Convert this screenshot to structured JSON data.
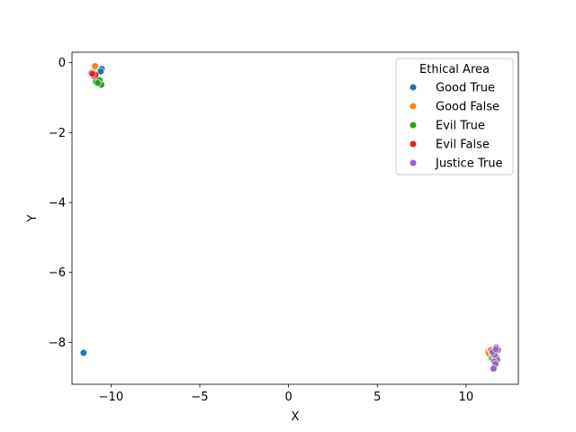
{
  "chart_data": {
    "type": "scatter",
    "title": "",
    "xlabel": "X",
    "ylabel": "Y",
    "xlim": [
      -12.2,
      12.95
    ],
    "ylim": [
      -9.2,
      0.3
    ],
    "xticks": [
      -10,
      -5,
      0,
      5,
      10
    ],
    "xtick_labels": [
      "−10",
      "−5",
      "0",
      "5",
      "10"
    ],
    "yticks": [
      0,
      -2,
      -4,
      -6,
      -8
    ],
    "ytick_labels": [
      "0",
      "−2",
      "−4",
      "−6",
      "−8"
    ],
    "grid": false,
    "legend": {
      "title": "Ethical Area",
      "position": "top-right"
    },
    "series": [
      {
        "name": "Good True",
        "color": "#1f77b4",
        "points": [
          [
            -10.55,
            -0.2
          ],
          [
            -10.6,
            -0.22
          ],
          [
            -10.52,
            -0.18
          ],
          [
            -10.58,
            -0.25
          ],
          [
            -11.55,
            -8.3
          ]
        ]
      },
      {
        "name": "Good False",
        "color": "#ff7f0e",
        "points": [
          [
            -10.9,
            -0.1
          ],
          [
            -11.05,
            -0.27
          ],
          [
            11.25,
            -8.28
          ],
          [
            11.3,
            -8.32
          ],
          [
            11.4,
            -8.22
          ],
          [
            11.45,
            -8.3
          ]
        ]
      },
      {
        "name": "Evil True",
        "color": "#2ca02c",
        "points": [
          [
            -10.7,
            -0.52
          ],
          [
            -10.85,
            -0.55
          ],
          [
            -10.65,
            -0.5
          ],
          [
            -10.55,
            -0.63
          ],
          [
            -10.75,
            -0.58
          ],
          [
            11.45,
            -8.45
          ],
          [
            11.55,
            -8.5
          ],
          [
            11.5,
            -8.38
          ]
        ]
      },
      {
        "name": "Evil False",
        "color": "#d62728",
        "points": [
          [
            -11.1,
            -0.3
          ],
          [
            -10.95,
            -0.38
          ],
          [
            -10.88,
            -0.35
          ],
          [
            -11.05,
            -0.32
          ],
          [
            11.5,
            -8.3
          ],
          [
            11.55,
            -8.26
          ]
        ]
      },
      {
        "name": "Justice True",
        "color": "#9467bd",
        "points": [
          [
            11.7,
            -8.15
          ],
          [
            11.65,
            -8.25
          ],
          [
            11.8,
            -8.22
          ],
          [
            11.6,
            -8.3
          ],
          [
            11.55,
            -8.35
          ],
          [
            11.7,
            -8.42
          ],
          [
            11.75,
            -8.5
          ],
          [
            11.6,
            -8.55
          ],
          [
            11.65,
            -8.62
          ],
          [
            11.55,
            -8.75
          ],
          [
            11.6,
            -8.35
          ],
          [
            11.5,
            -8.28
          ],
          [
            11.68,
            -8.2
          ]
        ]
      }
    ]
  }
}
